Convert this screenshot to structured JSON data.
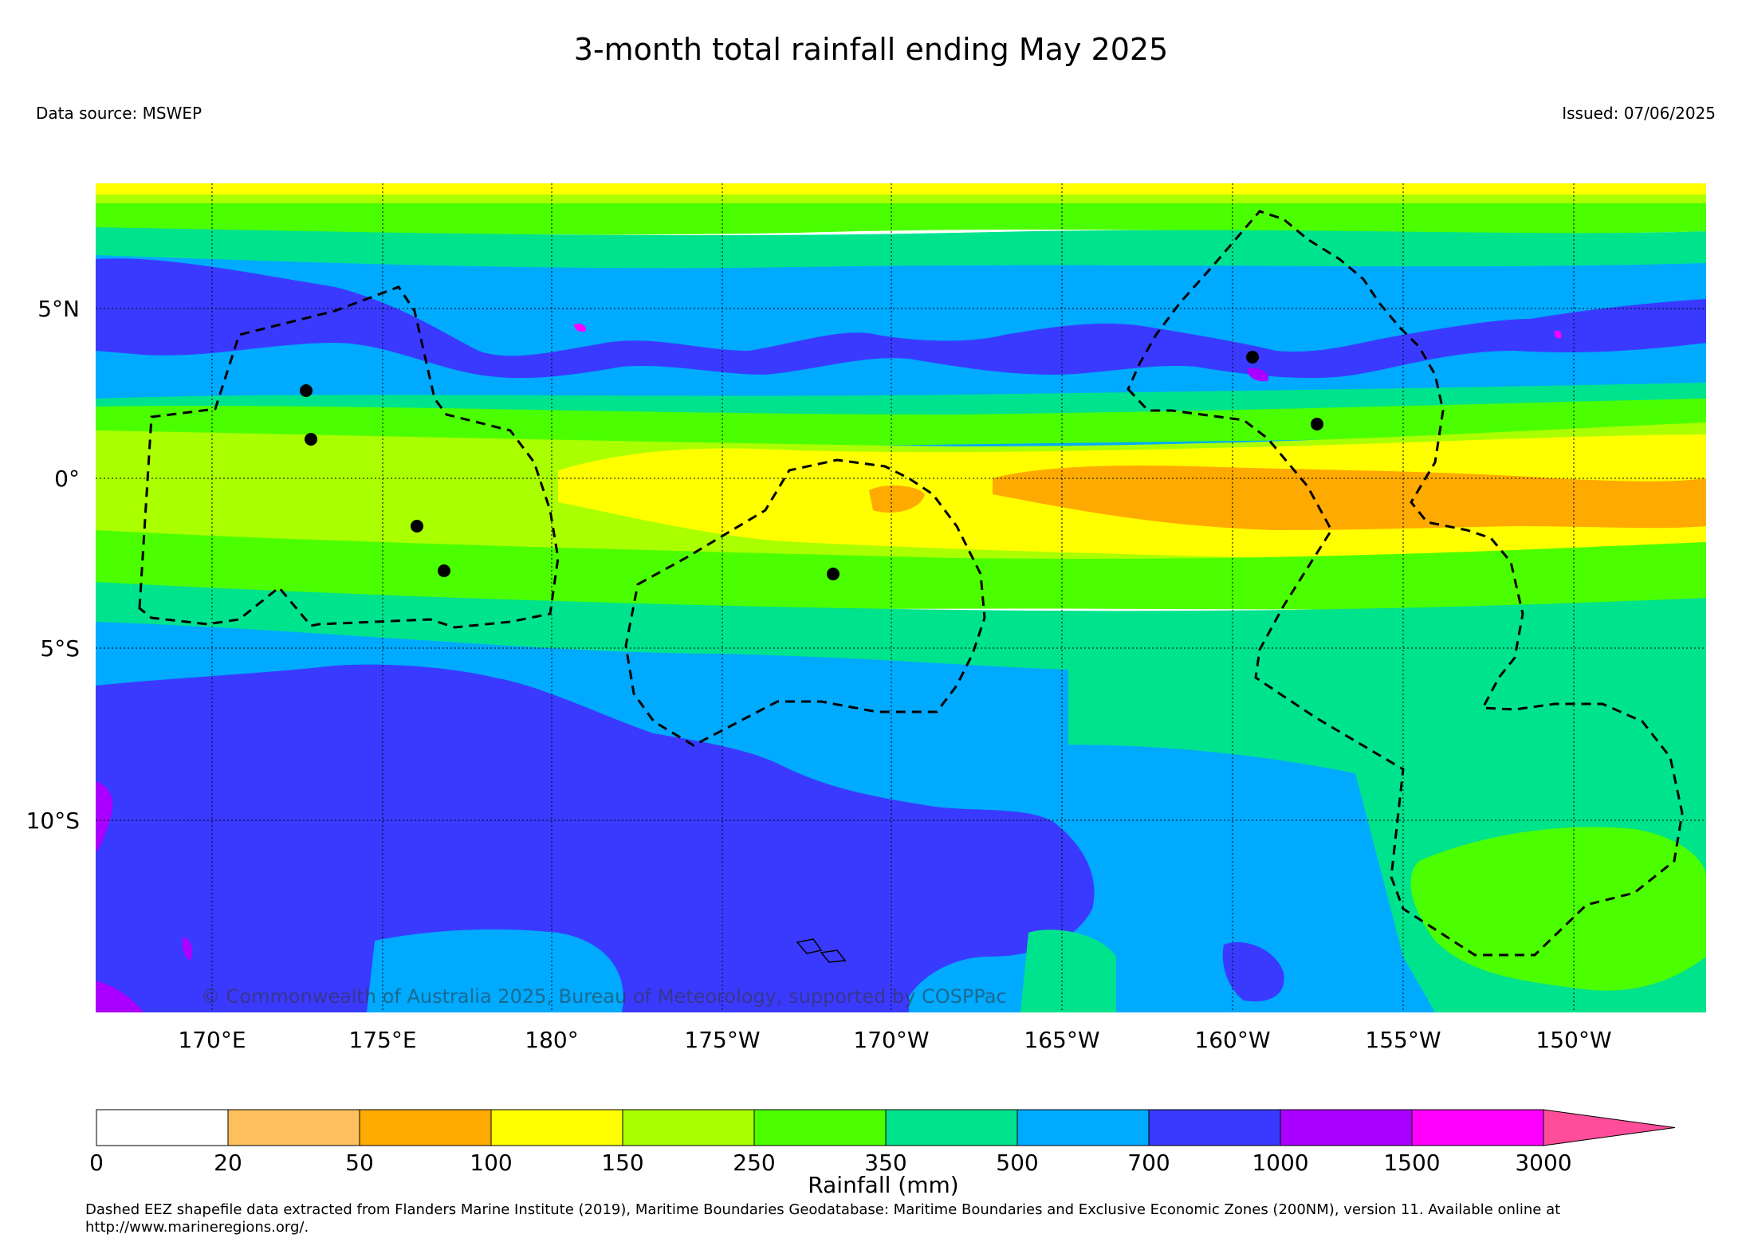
{
  "title": "3-month total rainfall ending May 2025",
  "data_source": "Data source: MSWEP",
  "issued": "Issued: 07/06/2025",
  "copyright": "© Commonwealth of Australia 2025, Bureau of Meteorology, supported by COSPPac",
  "lat_labels": [
    "5°N",
    "0°",
    "5°S",
    "10°S"
  ],
  "lon_labels": [
    "170°E",
    "175°E",
    "180°",
    "175°W",
    "170°W",
    "165°W",
    "160°W",
    "155°W",
    "150°W"
  ],
  "colorbar": {
    "label": "Rainfall (mm)",
    "ticks": [
      "0",
      "20",
      "50",
      "100",
      "150",
      "250",
      "350",
      "500",
      "700",
      "1000",
      "1500",
      "3000"
    ],
    "colors": [
      "#ffffff",
      "#ffbf5c",
      "#ffaa00",
      "#ffff00",
      "#aaff00",
      "#4cff00",
      "#00e38d",
      "#00aaff",
      "#3a3aff",
      "#aa00ff",
      "#ff00ff"
    ],
    "extend_color": "#ff4d9a"
  },
  "footer": "Dashed EEZ shapefile data extracted from Flanders Marine Institute (2019), Maritime Boundaries Geodatabase: Maritime Boundaries and Exclusive Economic Zones (200NM), version 11. Available online at http://www.marineregions.org/."
}
